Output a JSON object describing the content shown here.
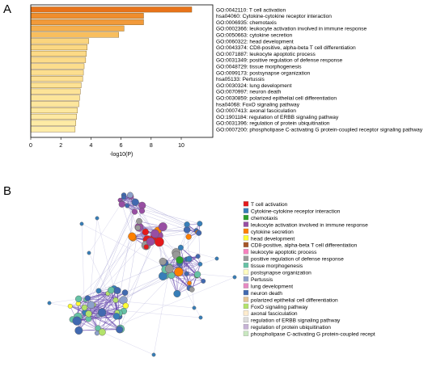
{
  "panel_a_letter": "A",
  "panel_b_letter": "B",
  "chart_data": [
    {
      "type": "bar",
      "orientation": "horizontal",
      "categories": [
        "GO:0042110: T cell activation",
        "hsa04060: Cytokine-cytokine receptor interaction",
        "GO:0006935: chemotaxis",
        "GO:0002366: leukocyte activation involved in immune response",
        "GO:0050663: cytokine secretion",
        "GO:0060322: head development",
        "GO:0043374: CD8-positive, alpha-beta T cell differentiation",
        "GO:0071887: leukocyte apoptotic process",
        "GO:0031349: positive regulation of defense response",
        "GO:0048729: tissue morphogenesis",
        "GO:0099173: postsynapse organization",
        "hsa05133: Pertussis",
        "GO:0030324: lung development",
        "GO:0070997: neuron death",
        "GO:0030859: polarized epithelial cell differentiation",
        "hsa04068: FoxO signaling pathway",
        "GO:0007413: axonal fasciculation",
        "GO:1901184: regulation of ERBB signaling pathway",
        "GO:0031396: regulation of protein ubiquitination",
        "GO:0007200: phospholipase C-activating G protein-coupled receptor signaling pathway"
      ],
      "values": [
        10.7,
        7.5,
        7.5,
        6.2,
        5.85,
        3.85,
        3.75,
        3.7,
        3.65,
        3.55,
        3.5,
        3.45,
        3.35,
        3.3,
        3.25,
        3.2,
        3.1,
        3.05,
        3.0,
        2.95
      ],
      "xlabel": "-log10(P)",
      "ylabel": "",
      "xlim": [
        0,
        12
      ],
      "xticks": [
        "0",
        "2",
        "4",
        "6",
        "8",
        "10"
      ],
      "colors": [
        "#e8731a",
        "#f08d2c",
        "#f29a3a",
        "#f6af4d",
        "#f8be5e",
        "#fbd57e",
        "#fbd883",
        "#fcda86",
        "#fcdb89",
        "#fcdd8c",
        "#fcde8f",
        "#fde092",
        "#fde294",
        "#fde397",
        "#fde59a",
        "#fde69c",
        "#fde89f",
        "#fee9a2",
        "#feeba5",
        "#feeca8"
      ]
    },
    {
      "type": "network",
      "legend_placement": "right",
      "legend": [
        {
          "label": "T cell activation",
          "color": "#e41a1c"
        },
        {
          "label": "Cytokine-cytokine receptor interaction",
          "color": "#377eb8"
        },
        {
          "label": "chemotaxis",
          "color": "#2ca02c"
        },
        {
          "label": "leukocyte activation involved in immune response",
          "color": "#984ea3"
        },
        {
          "label": "cytokine secretion",
          "color": "#ff7f00"
        },
        {
          "label": "head development",
          "color": "#ffff33"
        },
        {
          "label": "CD8-positive, alpha-beta T cell differentiation",
          "color": "#a65628"
        },
        {
          "label": "leukocyte apoptotic process",
          "color": "#f781bf"
        },
        {
          "label": "positive regulation of defense response",
          "color": "#999999"
        },
        {
          "label": "tissue morphogenesis",
          "color": "#66c2a5"
        },
        {
          "label": "postsynapse organization",
          "color": "#fffcc0"
        },
        {
          "label": "Pertussis",
          "color": "#8da0cb"
        },
        {
          "label": "lung development",
          "color": "#e78ac3"
        },
        {
          "label": "neuron death",
          "color": "#4169b0"
        },
        {
          "label": "polarized epithelial cell differentiation",
          "color": "#e5c494"
        },
        {
          "label": "FoxO signaling pathway",
          "color": "#b3e26b"
        },
        {
          "label": "axonal fasciculation",
          "color": "#fdeccd"
        },
        {
          "label": "regulation of ERBB signaling pathway",
          "color": "#dcdcdc"
        },
        {
          "label": "regulation of protein ubiquitination",
          "color": "#c7b3d6"
        },
        {
          "label": "phospholipase C-activating G protein-coupled recept",
          "color": "#c9e7c0"
        }
      ]
    }
  ]
}
